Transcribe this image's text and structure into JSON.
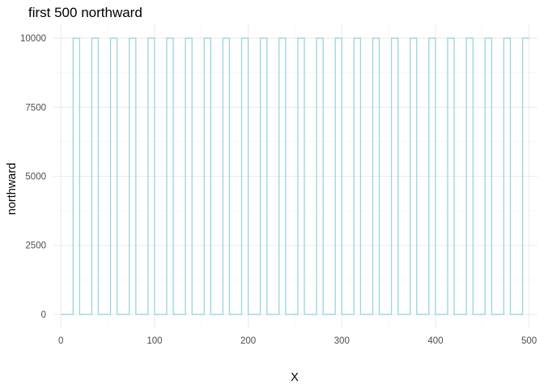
{
  "chart_data": {
    "type": "line",
    "title": "first 500 northward",
    "xlabel": "X",
    "ylabel": "northward",
    "xlim": [
      -8,
      509
    ],
    "ylim": [
      -500,
      10500
    ],
    "x_ticks": [
      0,
      100,
      200,
      300,
      400,
      500
    ],
    "y_ticks": [
      0,
      2500,
      5000,
      7500,
      10000
    ],
    "x_tick_labels": [
      "0",
      "100",
      "200",
      "300",
      "400",
      "500"
    ],
    "y_tick_labels": [
      "0",
      "2500",
      "5000",
      "7500",
      "10000"
    ],
    "grid": true,
    "legend": "none",
    "line_color": "#9ad3e0",
    "series": [
      {
        "x": [
          0,
          13,
          13,
          20,
          20,
          33,
          33,
          40,
          40,
          53,
          53,
          60,
          60,
          73,
          73,
          80,
          80,
          93,
          93,
          100,
          100,
          113,
          113,
          120,
          120,
          133,
          133,
          140,
          140,
          153,
          153,
          160,
          160,
          173,
          173,
          180,
          180,
          193,
          193,
          200,
          200,
          213,
          213,
          220,
          220,
          233,
          233,
          240,
          240,
          253,
          253,
          260,
          260,
          273,
          273,
          280,
          280,
          293,
          293,
          300,
          300,
          313,
          313,
          320,
          320,
          333,
          333,
          340,
          340,
          353,
          353,
          360,
          360,
          373,
          373,
          380,
          380,
          393,
          393,
          400,
          400,
          413,
          413,
          420,
          420,
          433,
          433,
          440,
          440,
          453,
          453,
          460,
          460,
          473,
          473,
          480,
          480,
          493,
          493,
          500
        ],
        "y": [
          0,
          0,
          10000,
          10000,
          0,
          0,
          10000,
          10000,
          0,
          0,
          10000,
          10000,
          0,
          0,
          10000,
          10000,
          0,
          0,
          10000,
          10000,
          0,
          0,
          10000,
          10000,
          0,
          0,
          10000,
          10000,
          0,
          0,
          10000,
          10000,
          0,
          0,
          10000,
          10000,
          0,
          0,
          10000,
          10000,
          0,
          0,
          10000,
          10000,
          0,
          0,
          10000,
          10000,
          0,
          0,
          10000,
          10000,
          0,
          0,
          10000,
          10000,
          0,
          0,
          10000,
          10000,
          0,
          0,
          10000,
          10000,
          0,
          0,
          10000,
          10000,
          0,
          0,
          10000,
          10000,
          0,
          0,
          10000,
          10000,
          0,
          0,
          10000,
          10000,
          0,
          0,
          10000,
          10000,
          0,
          0,
          10000,
          10000,
          0,
          0,
          10000,
          10000,
          0,
          0,
          10000,
          10000,
          0,
          0,
          10000,
          10000
        ]
      }
    ]
  }
}
